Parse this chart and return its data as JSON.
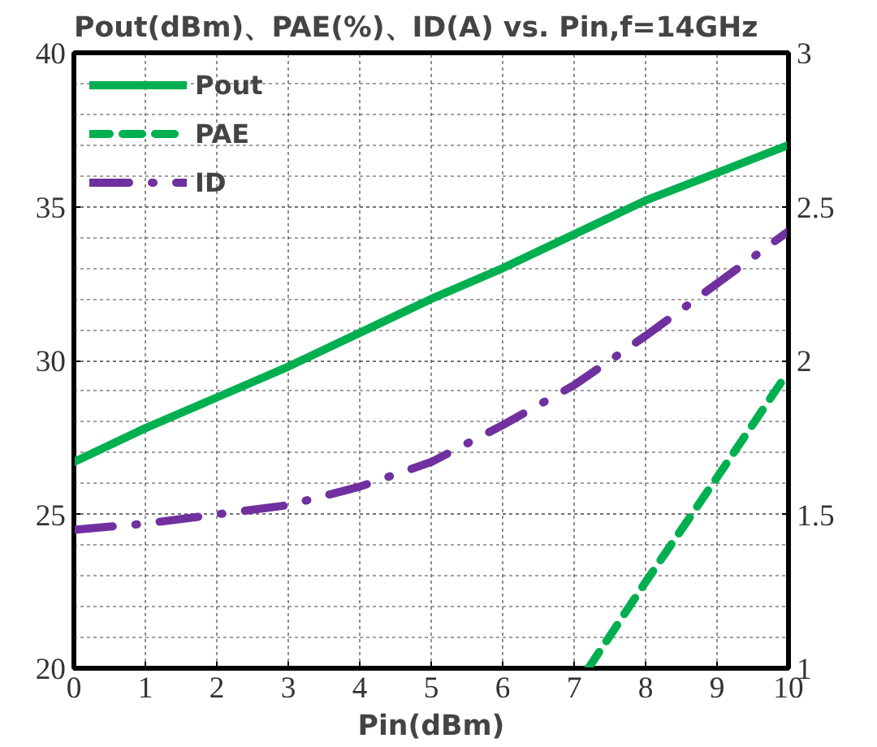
{
  "chart_data": {
    "type": "line",
    "title": "Pout(dBm)、PAE(%)、ID(A) vs. Pin,f=14GHz",
    "xlabel": "Pin(dBm)",
    "x": [
      0,
      1,
      2,
      3,
      4,
      5,
      6,
      7,
      8,
      9,
      10
    ],
    "series": [
      {
        "name": "Pout",
        "color": "#00b050",
        "line_style": "solid",
        "values": [
          26.7,
          27.8,
          28.8,
          29.8,
          30.9,
          32.0,
          33.0,
          34.1,
          35.2,
          36.1,
          37.0
        ]
      },
      {
        "name": "PAE",
        "color": "#00b050",
        "line_style": "dashed",
        "x": [
          7.2,
          8,
          9,
          9.9
        ],
        "values": [
          20,
          22.8,
          26.2,
          29.3
        ]
      },
      {
        "name": "ID",
        "color": "#7030a0",
        "line_style": "dashdot",
        "axis": "y2",
        "values": [
          1.45,
          1.47,
          1.5,
          1.53,
          1.59,
          1.67,
          1.79,
          1.92,
          2.08,
          2.25,
          2.42
        ]
      }
    ],
    "xlim": [
      0,
      10
    ],
    "xticks": [
      0,
      1,
      2,
      3,
      4,
      5,
      6,
      7,
      8,
      9,
      10
    ],
    "ylim": [
      20,
      40
    ],
    "yticks": [
      20,
      25,
      30,
      35,
      40
    ],
    "y2lim": [
      1,
      3
    ],
    "y2ticks": [
      1,
      {
        "value": 1.5,
        "label": "1.5"
      },
      2,
      {
        "value": 2.5,
        "label": "2.5"
      },
      3
    ],
    "grid": true,
    "legend": "top left"
  }
}
